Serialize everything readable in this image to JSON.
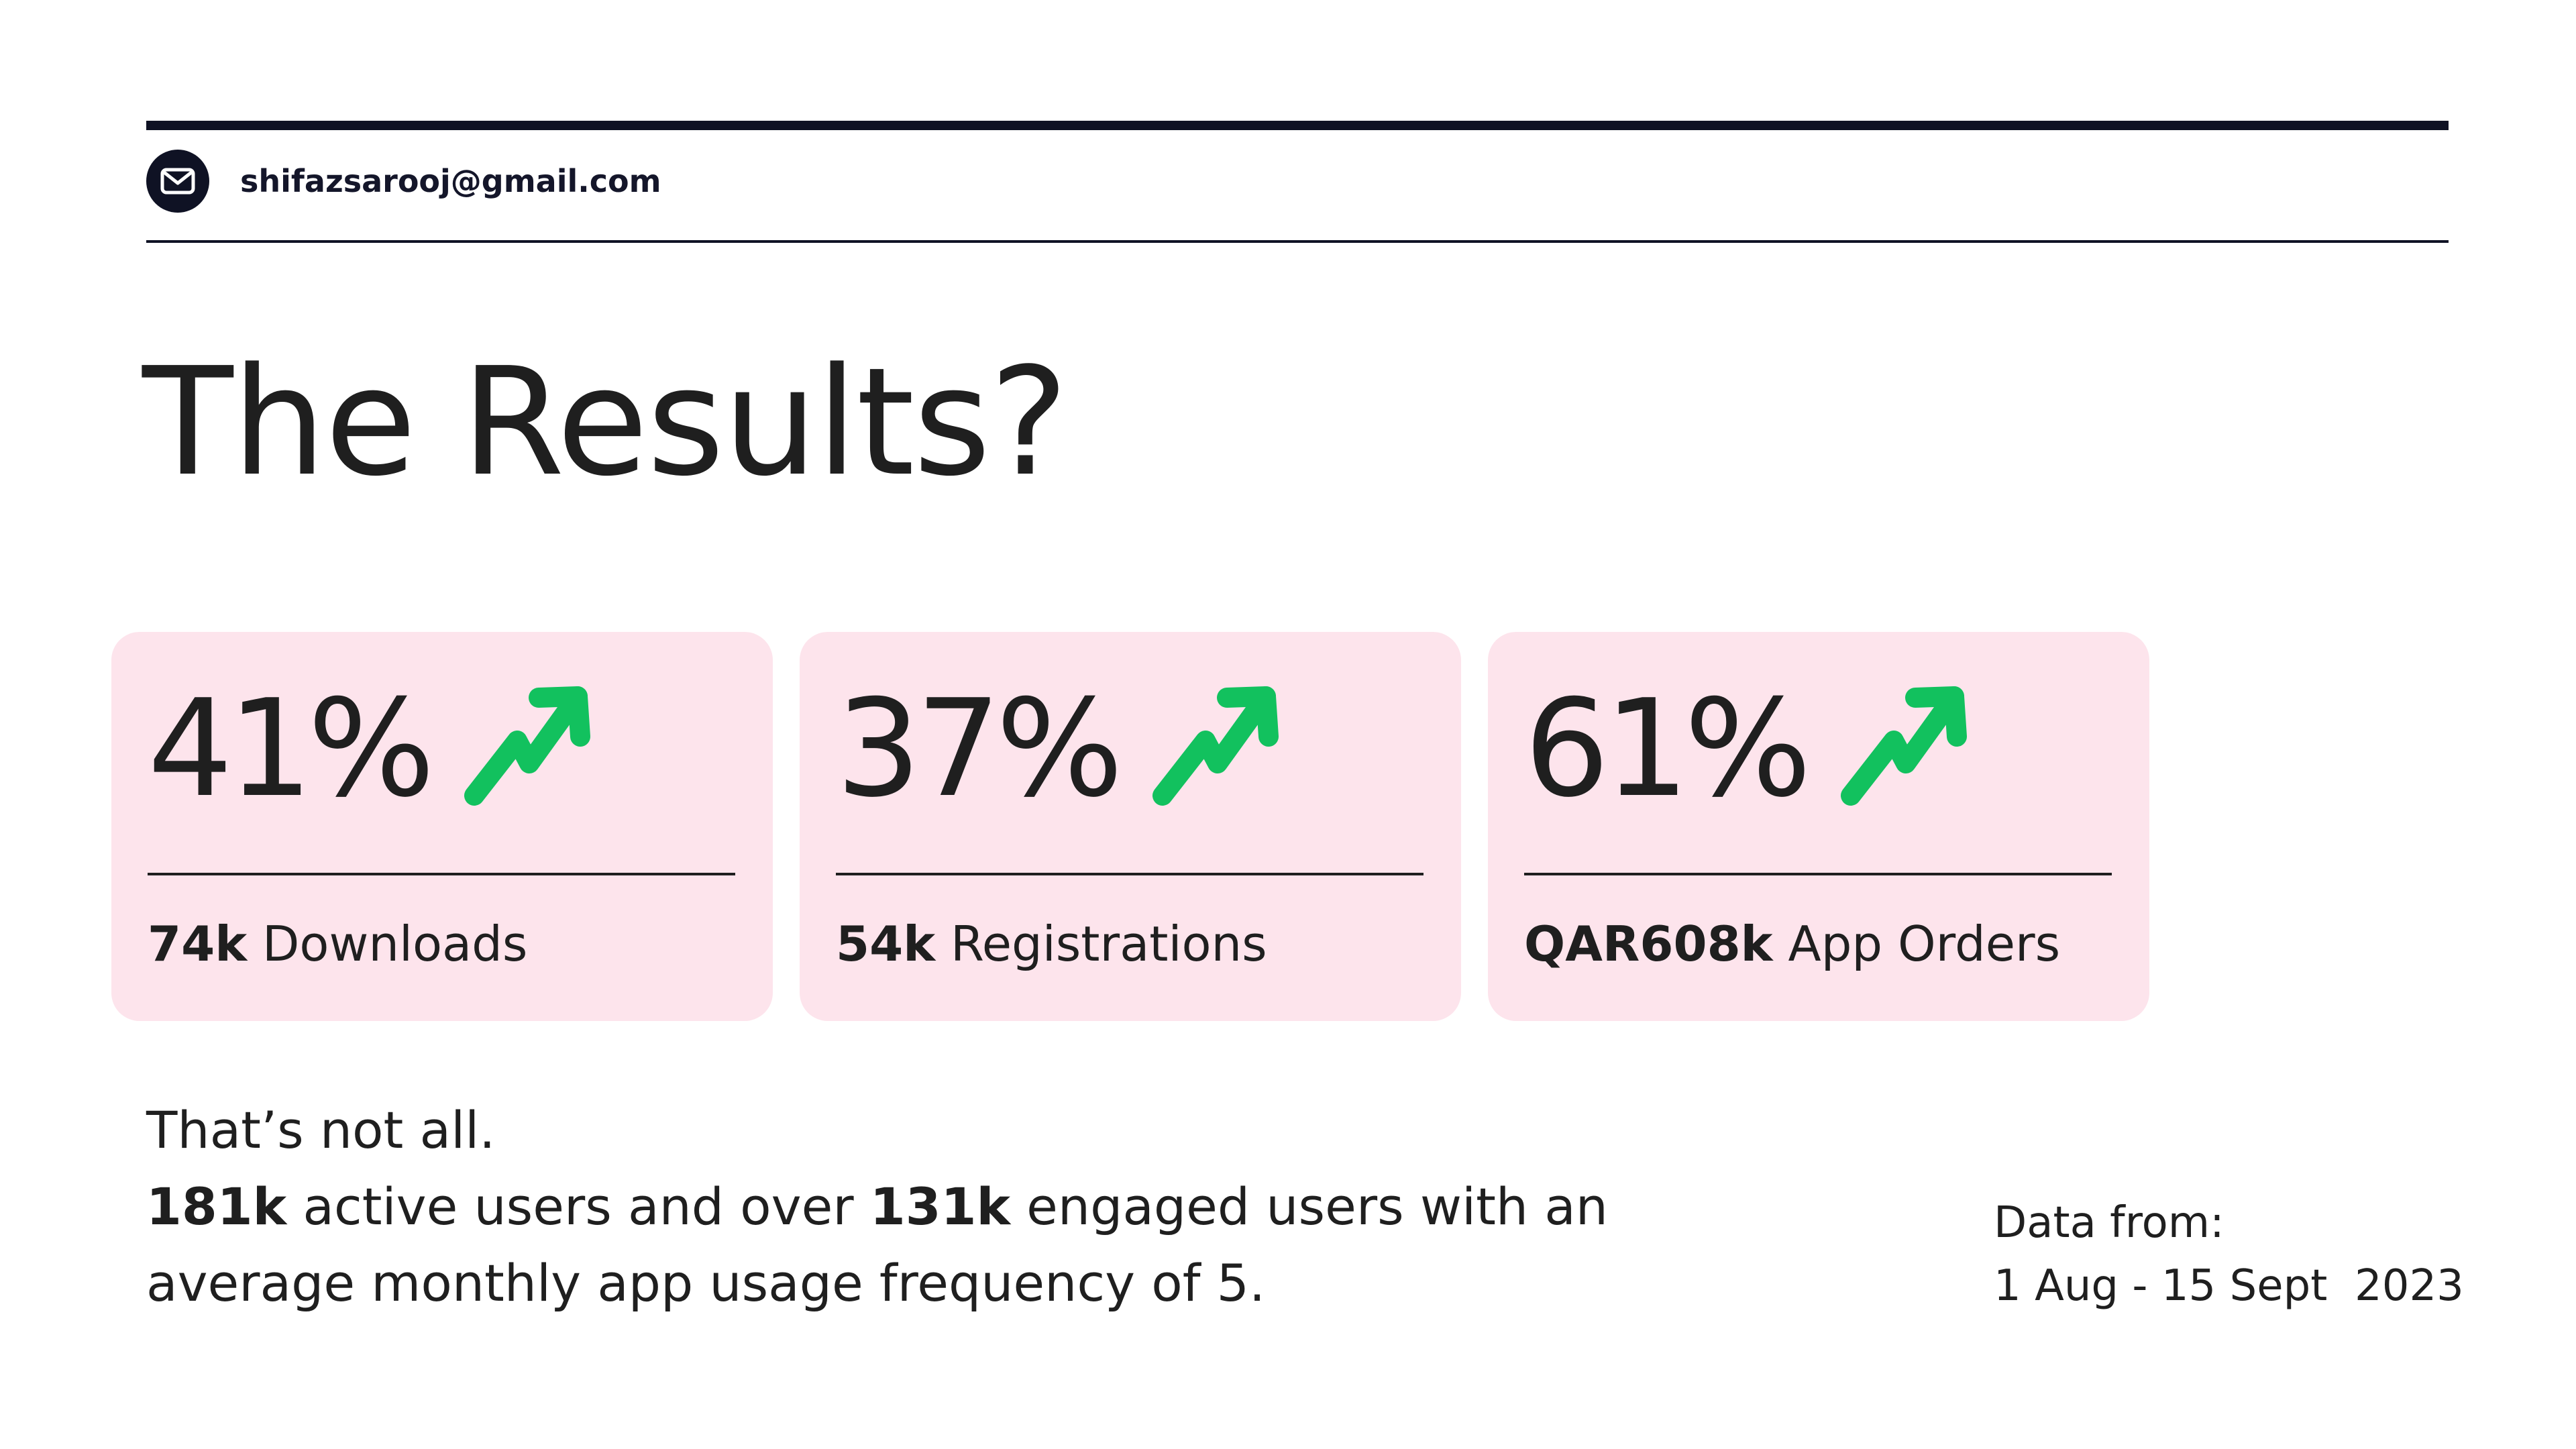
{
  "header": {
    "email": "shifazsarooj@gmail.com",
    "icon": "mail-icon"
  },
  "title": "The Results?",
  "cards": [
    {
      "percent": "41%",
      "value": "74k",
      "label": "Downloads",
      "icon": "trending-up-icon"
    },
    {
      "percent": "37%",
      "value": "54k",
      "label": "Registrations",
      "icon": "trending-up-icon"
    },
    {
      "percent": "61%",
      "value": "QAR608k",
      "label": "App Orders",
      "icon": "trending-up-icon"
    }
  ],
  "summary": {
    "line1": "That’s not all.",
    "active_value": "181k",
    "active_text": " active users and over ",
    "engaged_value": "131k",
    "engaged_text": " engaged users with an",
    "line3": "average monthly app usage frequency of 5."
  },
  "date": {
    "label": "Data from:",
    "range": "1 Aug - 15 Sept  2023"
  },
  "colors": {
    "dark": "#0f1224",
    "card_bg": "#fde4ec",
    "trend_green": "#12c15e"
  }
}
